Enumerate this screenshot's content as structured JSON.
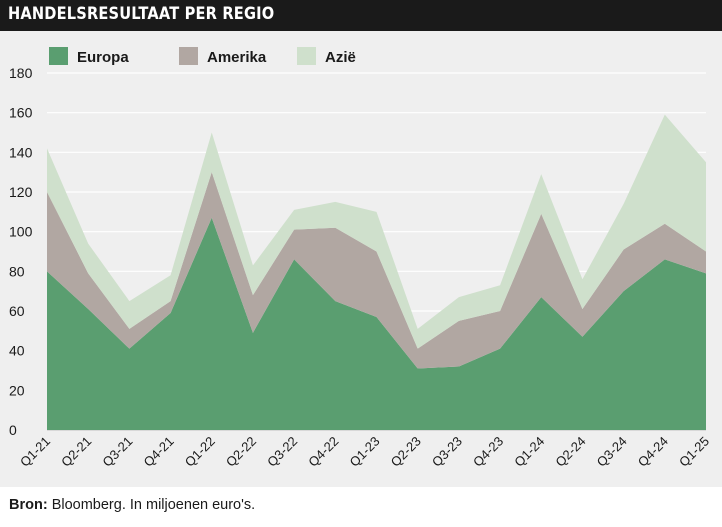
{
  "title": "HANDELSRESULTAAT PER REGIO",
  "source": {
    "label": "Bron:",
    "text": "Bloomberg. In miljoenen euro's."
  },
  "colors": {
    "europa": "#5a9e70",
    "amerika": "#b1a7a2",
    "azie": "#cfe0cc",
    "background": "#efefef",
    "title_bg": "#1a1a1a"
  },
  "chart_data": {
    "type": "area",
    "stacked": true,
    "categories": [
      "Q1-21",
      "Q2-21",
      "Q3-21",
      "Q4-21",
      "Q1-22",
      "Q2-22",
      "Q3-22",
      "Q4-22",
      "Q1-23",
      "Q2-23",
      "Q3-23",
      "Q4-23",
      "Q1-24",
      "Q2-24",
      "Q3-24",
      "Q4-24",
      "Q1-25"
    ],
    "series": [
      {
        "name": "Europa",
        "values": [
          80,
          61,
          41,
          59,
          107,
          49,
          86,
          65,
          57,
          31,
          32,
          41,
          67,
          47,
          70,
          86,
          79
        ]
      },
      {
        "name": "Amerika",
        "values": [
          40,
          18,
          10,
          6,
          23,
          19,
          15,
          37,
          33,
          10,
          23,
          19,
          42,
          14,
          21,
          18,
          11
        ]
      },
      {
        "name": "Azië",
        "values": [
          22,
          15,
          14,
          13,
          20,
          15,
          10,
          13,
          20,
          10,
          12,
          13,
          20,
          15,
          23,
          55,
          45
        ]
      }
    ],
    "yticks": [
      0,
      20,
      40,
      60,
      80,
      100,
      120,
      140,
      160,
      180
    ],
    "ylim": [
      0,
      180
    ],
    "grid": true,
    "legend": "top-left"
  }
}
